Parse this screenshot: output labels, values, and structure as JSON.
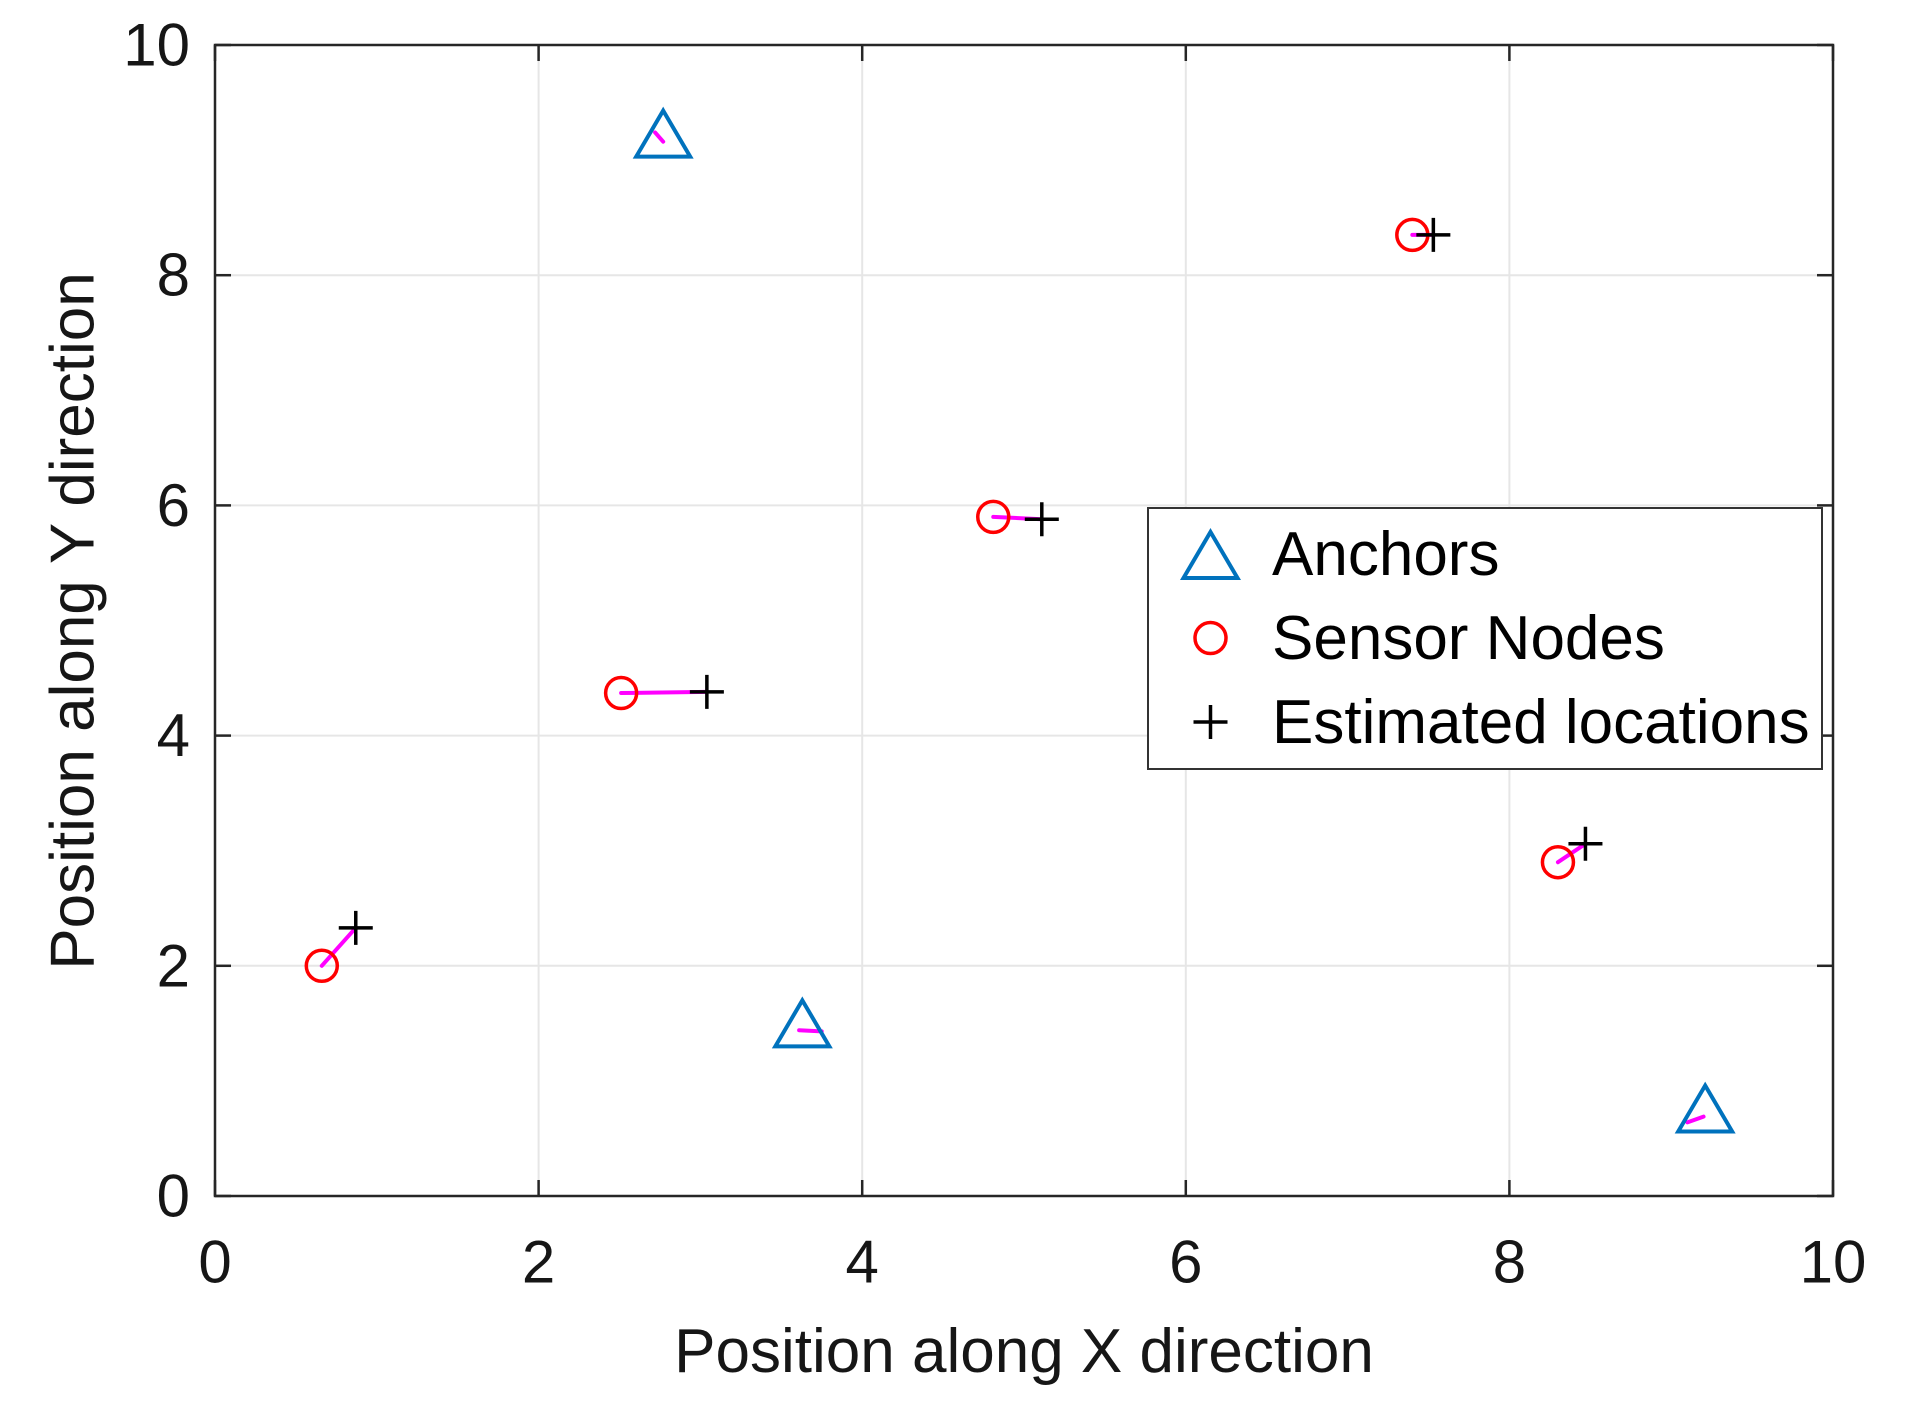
{
  "chart_data": {
    "type": "scatter",
    "title": "",
    "xlabel": "Position along X direction",
    "ylabel": "Position along Y direction",
    "xlim": [
      0,
      10
    ],
    "ylim": [
      0,
      10
    ],
    "xticks": [
      0,
      2,
      4,
      6,
      8,
      10
    ],
    "yticks": [
      0,
      2,
      4,
      6,
      8,
      10
    ],
    "grid": true,
    "legend": {
      "position": "right-middle",
      "entries": [
        "Anchors",
        "Sensor Nodes",
        "Estimated locations"
      ]
    },
    "colors": {
      "anchor": "#0072BD",
      "sensor": "#FF0000",
      "estimate": "#000000",
      "error_line": "#FF00FF",
      "axis": "#262626",
      "grid": "#E6E6E6"
    },
    "series": [
      {
        "name": "Anchors",
        "marker": "triangle",
        "x": [
          2.77,
          3.63,
          9.21
        ],
        "y": [
          9.23,
          1.5,
          0.76
        ]
      },
      {
        "name": "Sensor Nodes",
        "marker": "circle",
        "x": [
          0.66,
          2.51,
          4.81,
          7.4,
          8.3
        ],
        "y": [
          2.0,
          4.37,
          5.9,
          8.35,
          2.9
        ]
      },
      {
        "name": "Estimated locations",
        "marker": "plus",
        "x": [
          0.87,
          3.04,
          5.11,
          7.53,
          8.47
        ],
        "y": [
          2.33,
          4.38,
          5.88,
          8.35,
          3.06
        ]
      }
    ],
    "error_lines": [
      {
        "x1": 0.66,
        "y1": 2.0,
        "x2": 0.87,
        "y2": 2.33
      },
      {
        "x1": 2.51,
        "y1": 4.37,
        "x2": 3.04,
        "y2": 4.38
      },
      {
        "x1": 4.81,
        "y1": 5.9,
        "x2": 5.11,
        "y2": 5.88
      },
      {
        "x1": 7.4,
        "y1": 8.35,
        "x2": 7.53,
        "y2": 8.35
      },
      {
        "x1": 8.3,
        "y1": 2.9,
        "x2": 8.47,
        "y2": 3.06
      },
      {
        "x1": 2.72,
        "y1": 9.24,
        "x2": 2.77,
        "y2": 9.16
      },
      {
        "x1": 3.61,
        "y1": 1.44,
        "x2": 3.75,
        "y2": 1.43
      },
      {
        "x1": 9.1,
        "y1": 0.64,
        "x2": 9.2,
        "y2": 0.69
      }
    ]
  }
}
